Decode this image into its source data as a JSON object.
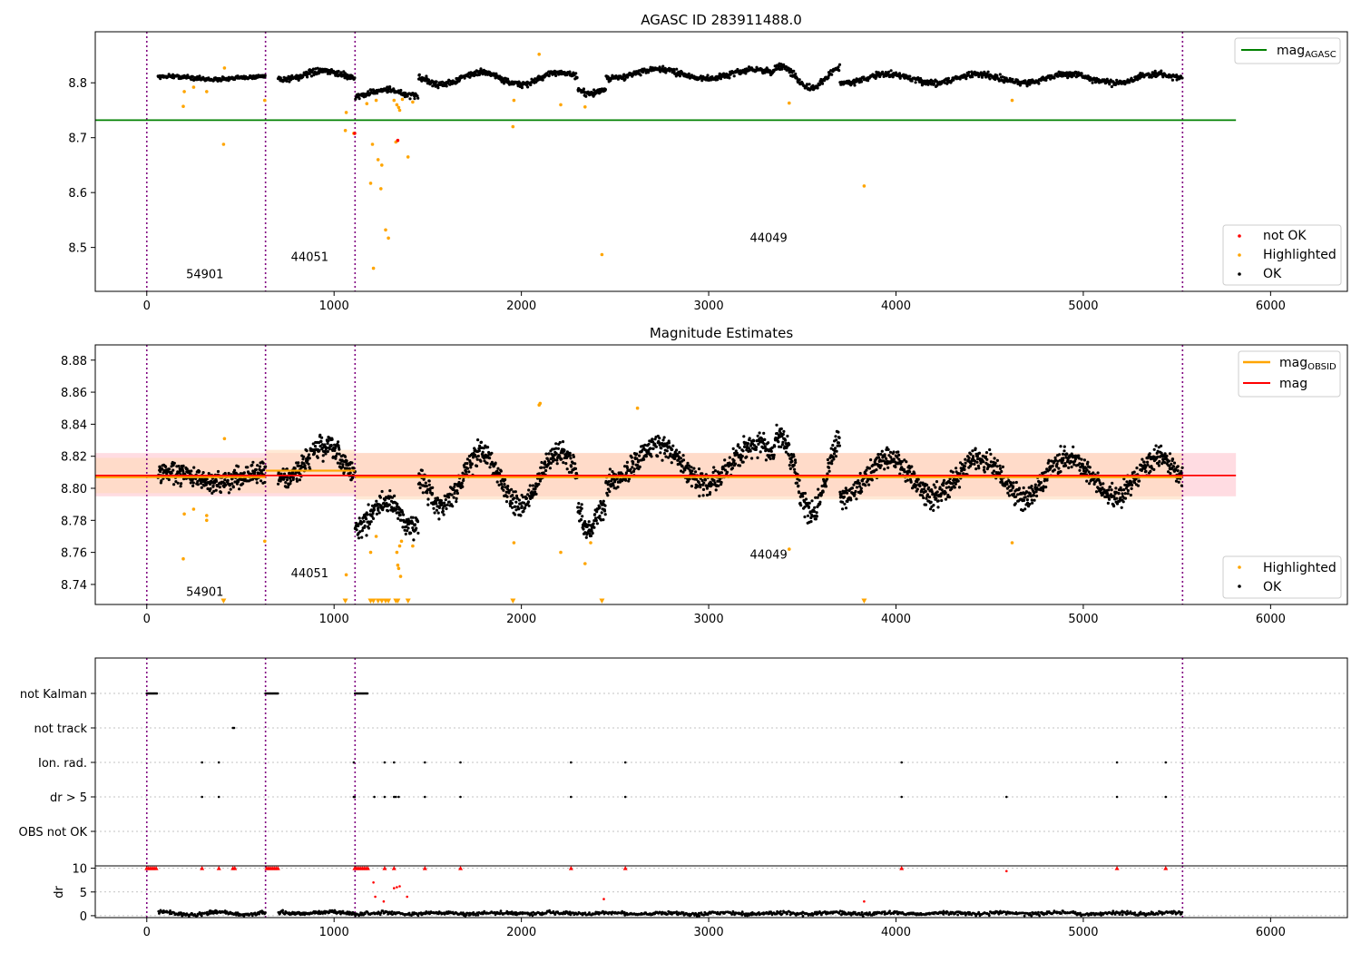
{
  "colors": {
    "ok": "#000000",
    "highlighted": "#ffa500",
    "not_ok": "#ff0000",
    "agasc_line": "#008000",
    "mag_line": "#ff0000",
    "obsid_line": "#ffa500",
    "obs_boundary": "#800080",
    "band_mag": "#ffc0cb",
    "band_obsid": "#ffdab9"
  },
  "obs_boundaries": [
    0,
    634,
    1112,
    5530
  ],
  "chart_data": [
    {
      "id": "agasc",
      "type": "scatter",
      "title": "AGASC ID 283911488.0",
      "xlim": [
        -275,
        6410
      ],
      "ylim": [
        8.42,
        8.893
      ],
      "xticks": [
        0,
        1000,
        2000,
        3000,
        4000,
        5000,
        6000
      ],
      "yticks": [
        8.5,
        8.6,
        8.7,
        8.8
      ],
      "ytick_labels": [
        "8.5",
        "8.6",
        "8.7",
        "8.8"
      ],
      "reference_lines": [
        {
          "name": "mag_{AGASC}",
          "y": 8.732,
          "x_range": [
            -275,
            5815
          ]
        }
      ],
      "obsid_labels": [
        {
          "text": "54901",
          "x": 310,
          "y": 8.444
        },
        {
          "text": "44051",
          "x": 870,
          "y": 8.475
        },
        {
          "text": "44049",
          "x": 3320,
          "y": 8.51
        }
      ],
      "legend_line": {
        "label_main": "mag",
        "label_sub": "AGASC",
        "placement": "top-right"
      },
      "legend_points": {
        "placement": "lower-right",
        "entries": [
          {
            "label": "not OK",
            "kind": "not_ok"
          },
          {
            "label": "Highlighted",
            "kind": "highlighted"
          },
          {
            "label": "OK",
            "kind": "ok"
          }
        ]
      },
      "highlighted_points": [
        [
          195,
          8.757
        ],
        [
          200,
          8.784
        ],
        [
          250,
          8.792
        ],
        [
          320,
          8.784
        ],
        [
          410,
          8.688
        ],
        [
          415,
          8.827
        ],
        [
          630,
          8.768
        ],
        [
          1060,
          8.713
        ],
        [
          1065,
          8.746
        ],
        [
          1105,
          8.708
        ],
        [
          1175,
          8.762
        ],
        [
          1195,
          8.617
        ],
        [
          1205,
          8.688
        ],
        [
          1210,
          8.462
        ],
        [
          1225,
          8.768
        ],
        [
          1235,
          8.66
        ],
        [
          1250,
          8.607
        ],
        [
          1255,
          8.65
        ],
        [
          1275,
          8.532
        ],
        [
          1290,
          8.517
        ],
        [
          1320,
          8.768
        ],
        [
          1330,
          8.692
        ],
        [
          1335,
          8.76
        ],
        [
          1345,
          8.755
        ],
        [
          1350,
          8.75
        ],
        [
          1365,
          8.77
        ],
        [
          1395,
          8.665
        ],
        [
          1420,
          8.765
        ],
        [
          1955,
          8.72
        ],
        [
          1960,
          8.768
        ],
        [
          2095,
          8.852
        ],
        [
          2210,
          8.76
        ],
        [
          2340,
          8.756
        ],
        [
          2430,
          8.487
        ],
        [
          3430,
          8.763
        ],
        [
          3830,
          8.612
        ],
        [
          4620,
          8.768
        ]
      ],
      "not_ok_points": [
        [
          1110,
          8.708
        ],
        [
          1340,
          8.695
        ]
      ],
      "ok_segments": [
        {
          "x": [
            60,
            634
          ],
          "n": 200,
          "base": 8.809,
          "amp": 0.003,
          "period": 500,
          "noise": 0.004
        },
        {
          "x": [
            700,
            1112
          ],
          "n": 150,
          "base": 8.814,
          "amp": 0.007,
          "period": 420,
          "noise": 0.006
        },
        {
          "x": [
            1112,
            1450
          ],
          "n": 110,
          "base": 8.782,
          "amp": 0.006,
          "period": 300,
          "noise": 0.006
        },
        {
          "x": [
            1450,
            2300
          ],
          "n": 300,
          "base": 8.808,
          "amp": 0.011,
          "period": 420,
          "noise": 0.006
        },
        {
          "x": [
            2300,
            2450
          ],
          "n": 55,
          "base": 8.783,
          "amp": 0.004,
          "period": 150,
          "noise": 0.006
        },
        {
          "x": [
            2450,
            3350
          ],
          "n": 320,
          "base": 8.816,
          "amp": 0.008,
          "period": 520,
          "noise": 0.006
        },
        {
          "x": [
            3350,
            3700
          ],
          "n": 120,
          "base": 8.81,
          "amp": 0.02,
          "period": 330,
          "noise": 0.006
        },
        {
          "x": [
            3700,
            5530
          ],
          "n": 600,
          "base": 8.808,
          "amp": 0.008,
          "period": 480,
          "noise": 0.006
        }
      ]
    },
    {
      "id": "estimates",
      "type": "scatter",
      "title": "Magnitude Estimates",
      "xlim": [
        -275,
        6410
      ],
      "ylim": [
        8.7275,
        8.8895
      ],
      "xticks": [
        0,
        1000,
        2000,
        3000,
        4000,
        5000,
        6000
      ],
      "yticks": [
        8.74,
        8.76,
        8.78,
        8.8,
        8.82,
        8.84,
        8.86,
        8.88
      ],
      "ytick_labels": [
        "8.74",
        "8.76",
        "8.78",
        "8.80",
        "8.82",
        "8.84",
        "8.86",
        "8.88"
      ],
      "mag_line": {
        "name": "mag",
        "y": 8.808,
        "band": [
          8.795,
          8.822
        ],
        "x_range": [
          -275,
          5815
        ]
      },
      "obsid_lines": [
        {
          "x_range": [
            -275,
            634
          ],
          "y": 8.807,
          "band": [
            8.797,
            8.819
          ]
        },
        {
          "x_range": [
            634,
            1112
          ],
          "y": 8.811,
          "band": [
            8.797,
            8.824
          ]
        },
        {
          "x_range": [
            1112,
            5530
          ],
          "y": 8.807,
          "band": [
            8.793,
            8.822
          ]
        }
      ],
      "obsid_labels": [
        {
          "text": "54901",
          "x": 310,
          "y": 8.733
        },
        {
          "text": "44051",
          "x": 870,
          "y": 8.7445
        },
        {
          "text": "44049",
          "x": 3320,
          "y": 8.756
        }
      ],
      "legend_line": {
        "placement": "top-right",
        "entries": [
          {
            "label_main": "mag",
            "label_sub": "OBSID",
            "kind": "obsid"
          },
          {
            "label_main": "mag",
            "label_sub": "",
            "kind": "mag"
          }
        ]
      },
      "legend_points": {
        "placement": "lower-right",
        "entries": [
          {
            "label": "Highlighted",
            "kind": "highlighted"
          },
          {
            "label": "OK",
            "kind": "ok"
          }
        ]
      },
      "highlighted_points": [
        [
          195,
          8.756
        ],
        [
          200,
          8.784
        ],
        [
          250,
          8.787
        ],
        [
          320,
          8.78
        ],
        [
          320,
          8.783
        ],
        [
          415,
          8.831
        ],
        [
          630,
          8.767
        ],
        [
          1065,
          8.746
        ],
        [
          1195,
          8.76
        ],
        [
          1225,
          8.77
        ],
        [
          1335,
          8.76
        ],
        [
          1340,
          8.752
        ],
        [
          1345,
          8.75
        ],
        [
          1350,
          8.764
        ],
        [
          1355,
          8.745
        ],
        [
          1360,
          8.767
        ],
        [
          1420,
          8.764
        ],
        [
          1960,
          8.766
        ],
        [
          2095,
          8.852
        ],
        [
          2100,
          8.853
        ],
        [
          2210,
          8.76
        ],
        [
          2340,
          8.753
        ],
        [
          2370,
          8.766
        ],
        [
          2620,
          8.85
        ],
        [
          3430,
          8.762
        ],
        [
          4620,
          8.766
        ]
      ],
      "clipped_points_x": [
        410,
        1060,
        1195,
        1210,
        1235,
        1255,
        1275,
        1290,
        1330,
        1340,
        1395,
        1955,
        2430,
        3830
      ],
      "clipped_y": 8.7295,
      "ok_segments": [
        {
          "x": [
            60,
            634
          ],
          "n": 300,
          "base": 8.807,
          "amp": 0.003,
          "period": 500,
          "noise": 0.007
        },
        {
          "x": [
            700,
            1112
          ],
          "n": 220,
          "base": 8.816,
          "amp": 0.01,
          "period": 420,
          "noise": 0.008
        },
        {
          "x": [
            1112,
            1450
          ],
          "n": 170,
          "base": 8.784,
          "amp": 0.008,
          "period": 300,
          "noise": 0.008
        },
        {
          "x": [
            1450,
            2300
          ],
          "n": 420,
          "base": 8.806,
          "amp": 0.016,
          "period": 420,
          "noise": 0.008
        },
        {
          "x": [
            2300,
            2450
          ],
          "n": 80,
          "base": 8.781,
          "amp": 0.006,
          "period": 150,
          "noise": 0.007
        },
        {
          "x": [
            2450,
            3350
          ],
          "n": 450,
          "base": 8.815,
          "amp": 0.012,
          "period": 520,
          "noise": 0.008
        },
        {
          "x": [
            3350,
            3700
          ],
          "n": 180,
          "base": 8.808,
          "amp": 0.024,
          "period": 330,
          "noise": 0.008
        },
        {
          "x": [
            3700,
            5530
          ],
          "n": 900,
          "base": 8.807,
          "amp": 0.012,
          "period": 480,
          "noise": 0.008
        }
      ]
    },
    {
      "id": "flags",
      "type": "scatter",
      "title": "",
      "xlim": [
        -275,
        6410
      ],
      "categories": [
        "not Kalman",
        "not track",
        "Ion. rad.",
        "dr > 5",
        "OBS not OK"
      ],
      "flag_points": {
        "not Kalman": [
          [
            0,
            55
          ],
          [
            634,
            700
          ],
          [
            1112,
            1180
          ]
        ],
        "not track": [
          [
            460,
            470
          ]
        ],
        "Ion. rad.": [
          [
            295
          ],
          [
            385
          ],
          [
            1105
          ],
          [
            1270
          ],
          [
            1320
          ],
          [
            1485
          ],
          [
            1675
          ],
          [
            2265
          ],
          [
            2555
          ],
          [
            4030
          ],
          [
            5180
          ],
          [
            5440
          ]
        ],
        "dr > 5": [
          [
            295
          ],
          [
            385
          ],
          [
            1105
          ],
          [
            1110
          ],
          [
            1215
          ],
          [
            1270
          ],
          [
            1320
          ],
          [
            1330
          ],
          [
            1345
          ],
          [
            1485
          ],
          [
            1675
          ],
          [
            2265
          ],
          [
            2555
          ],
          [
            4030
          ],
          [
            4590
          ],
          [
            5180
          ],
          [
            5440
          ]
        ],
        "OBS not OK": []
      }
    },
    {
      "id": "dr",
      "type": "scatter",
      "title": "",
      "ylabel": "dr",
      "xlim": [
        -275,
        6410
      ],
      "ylim": [
        -0.4,
        10.5
      ],
      "xticks": [
        0,
        1000,
        2000,
        3000,
        4000,
        5000,
        6000
      ],
      "xtick_labels": [
        "0",
        "1000",
        "2000",
        "3000",
        "4000",
        "5000",
        "6000"
      ],
      "yticks": [
        0,
        5,
        10
      ],
      "ytick_labels": [
        "0",
        "5",
        "10"
      ],
      "clip_value": 10,
      "red_points": [
        [
          0,
          10
        ],
        [
          10,
          10
        ],
        [
          20,
          10
        ],
        [
          30,
          10
        ],
        [
          40,
          10
        ],
        [
          50,
          10
        ],
        [
          295,
          10
        ],
        [
          385,
          10
        ],
        [
          460,
          10
        ],
        [
          470,
          10
        ],
        [
          640,
          10
        ],
        [
          650,
          10
        ],
        [
          660,
          10
        ],
        [
          670,
          10
        ],
        [
          680,
          10
        ],
        [
          690,
          10
        ],
        [
          700,
          10
        ],
        [
          1110,
          10
        ],
        [
          1120,
          10
        ],
        [
          1130,
          10
        ],
        [
          1140,
          10
        ],
        [
          1150,
          10
        ],
        [
          1160,
          10
        ],
        [
          1170,
          10
        ],
        [
          1180,
          10
        ],
        [
          1270,
          10
        ],
        [
          1320,
          10
        ],
        [
          1485,
          10
        ],
        [
          1675,
          10
        ],
        [
          2265,
          10
        ],
        [
          2555,
          10
        ],
        [
          4030,
          10
        ],
        [
          4590,
          9.4
        ],
        [
          5180,
          10
        ],
        [
          5440,
          10
        ],
        [
          1210,
          7
        ],
        [
          1220,
          4
        ],
        [
          1265,
          3
        ],
        [
          1320,
          5.8
        ],
        [
          1335,
          6
        ],
        [
          1350,
          6.2
        ],
        [
          1390,
          4
        ],
        [
          2440,
          3.5
        ],
        [
          3830,
          3
        ]
      ],
      "ok_segments": [
        {
          "x": [
            60,
            634
          ],
          "n": 150,
          "base": 0.5,
          "amp": 0.3,
          "period": 300,
          "noise": 0.4
        },
        {
          "x": [
            700,
            1112
          ],
          "n": 120,
          "base": 0.6,
          "amp": 0.2,
          "period": 300,
          "noise": 0.4
        },
        {
          "x": [
            1112,
            5530
          ],
          "n": 1000,
          "base": 0.5,
          "amp": 0.15,
          "period": 300,
          "noise": 0.4
        }
      ]
    }
  ]
}
